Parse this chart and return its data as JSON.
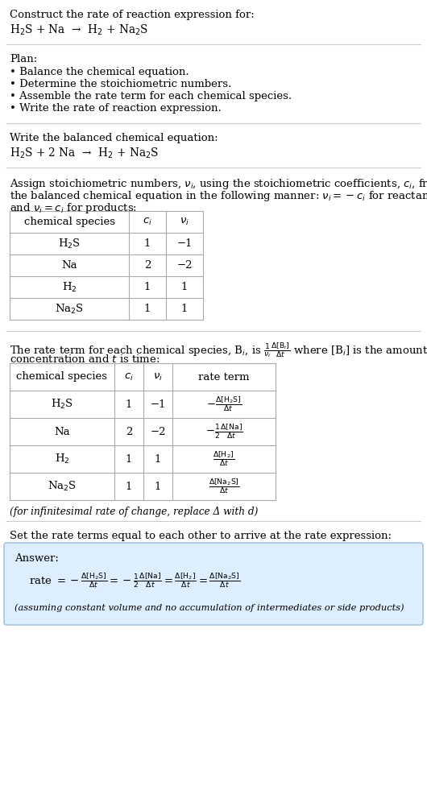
{
  "bg_color": "#ffffff",
  "text_color": "#000000",
  "table_border_color": "#aaaaaa",
  "answer_box_color": "#ddeeff",
  "answer_box_border": "#99bbdd",
  "section1_title": "Construct the rate of reaction expression for:",
  "section1_eq": "H$_2$S + Na  →  H$_2$ + Na$_2$S",
  "section2_title": "Plan:",
  "section2_items": [
    "• Balance the chemical equation.",
    "• Determine the stoichiometric numbers.",
    "• Assemble the rate term for each chemical species.",
    "• Write the rate of reaction expression."
  ],
  "section3_title": "Write the balanced chemical equation:",
  "section3_eq": "H$_2$S + 2 Na  →  H$_2$ + Na$_2$S",
  "section4_line1": "Assign stoichiometric numbers, $\\nu_i$, using the stoichiometric coefficients, $c_i$, from",
  "section4_line2": "the balanced chemical equation in the following manner: $\\nu_i = -c_i$ for reactants",
  "section4_line3": "and $\\nu_i = c_i$ for products:",
  "table1_headers": [
    "chemical species",
    "$c_i$",
    "$\\nu_i$"
  ],
  "table1_rows": [
    [
      "H$_2$S",
      "1",
      "−1"
    ],
    [
      "Na",
      "2",
      "−2"
    ],
    [
      "H$_2$",
      "1",
      "1"
    ],
    [
      "Na$_2$S",
      "1",
      "1"
    ]
  ],
  "section5_line1": "The rate term for each chemical species, B$_i$, is $\\frac{1}{\\nu_i}\\frac{\\Delta[\\mathrm{B}_i]}{\\Delta t}$ where [B$_i$] is the amount",
  "section5_line2": "concentration and $t$ is time:",
  "table2_headers": [
    "chemical species",
    "$c_i$",
    "$\\nu_i$",
    "rate term"
  ],
  "table2_rows": [
    [
      "H$_2$S",
      "1",
      "−1",
      "$-\\frac{\\Delta[\\mathrm{H_2S}]}{\\Delta t}$"
    ],
    [
      "Na",
      "2",
      "−2",
      "$-\\frac{1}{2}\\frac{\\Delta[\\mathrm{Na}]}{\\Delta t}$"
    ],
    [
      "H$_2$",
      "1",
      "1",
      "$\\frac{\\Delta[\\mathrm{H_2}]}{\\Delta t}$"
    ],
    [
      "Na$_2$S",
      "1",
      "1",
      "$\\frac{\\Delta[\\mathrm{Na_2S}]}{\\Delta t}$"
    ]
  ],
  "table2_footnote": "(for infinitesimal rate of change, replace Δ with d)",
  "section6_title": "Set the rate terms equal to each other to arrive at the rate expression:",
  "answer_label": "Answer:",
  "answer_eq_line": "rate $= -\\frac{\\Delta[\\mathrm{H_2S}]}{\\Delta t} = -\\frac{1}{2}\\frac{\\Delta[\\mathrm{Na}]}{\\Delta t} = \\frac{\\Delta[\\mathrm{H_2}]}{\\Delta t} = \\frac{\\Delta[\\mathrm{Na_2S}]}{\\Delta t}$",
  "answer_footnote": "(assuming constant volume and no accumulation of intermediates or side products)"
}
